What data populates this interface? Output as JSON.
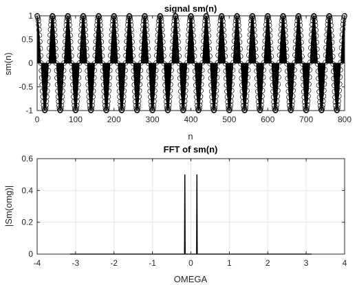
{
  "chart_data": [
    {
      "type": "stem",
      "title": "signal sm(n)",
      "xlabel": "n",
      "ylabel": "sm(n)",
      "xlim": [
        0,
        800
      ],
      "ylim": [
        -1,
        1
      ],
      "xticks": [
        "0",
        "100",
        "200",
        "300",
        "400",
        "500",
        "600",
        "700",
        "800"
      ],
      "yticks": [
        "1",
        "0.5",
        "0",
        "-0.5",
        "-1"
      ],
      "grid": false,
      "marker": "circle-open",
      "color": "#000000",
      "signal": {
        "formula": "cos(omega0 * n)",
        "omega0": 0.1571,
        "n_start": 0,
        "n_end": 800,
        "n_step": 1
      }
    },
    {
      "type": "line",
      "title": "FFT of sm(n)",
      "xlabel": "OMEGA",
      "ylabel": "|Sm(omg)|",
      "xlim": [
        -4,
        4
      ],
      "ylim": [
        0,
        0.6
      ],
      "xticks": [
        "-4",
        "-3",
        "-2",
        "-1",
        "0",
        "1",
        "2",
        "3",
        "4"
      ],
      "yticks": [
        "0.6",
        "0.4",
        "0.2",
        "0"
      ],
      "grid": true,
      "color": "#000000",
      "series": [
        {
          "x": [
            -3.1416,
            -0.165,
            -0.1571,
            -0.149,
            0.149,
            0.1571,
            0.165,
            3.1416
          ],
          "y": [
            0,
            0,
            0.5,
            0,
            0,
            0.5,
            0,
            0
          ]
        }
      ]
    }
  ]
}
